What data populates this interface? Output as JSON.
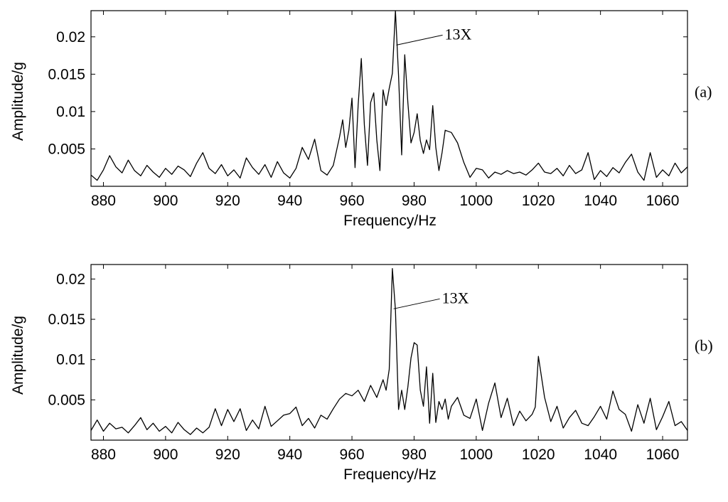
{
  "colors": {
    "line": "#000000",
    "frame": "#000000",
    "background": "#ffffff"
  },
  "chart_data": [
    {
      "type": "line",
      "panel_label": "(a)",
      "xlabel": "Frequency/Hz",
      "ylabel": "Amplitude/g",
      "xlim": [
        876,
        1068
      ],
      "ylim": [
        0,
        0.0235
      ],
      "xticks": [
        880,
        900,
        920,
        940,
        960,
        980,
        1000,
        1020,
        1040,
        1060
      ],
      "yticks": [
        0.005,
        0.01,
        0.015,
        0.02
      ],
      "ytick_labels": [
        "0.005",
        "0.01",
        "0.015",
        "0.02"
      ],
      "grid": false,
      "annotation": {
        "text": "13X",
        "x": 974.3,
        "y": 0.0189
      },
      "series": [
        {
          "x": [
            876,
            878,
            880,
            882,
            884,
            886,
            888,
            890,
            892,
            894,
            896,
            898,
            900,
            902,
            904,
            906,
            908,
            910,
            912,
            914,
            916,
            918,
            920,
            922,
            924,
            926,
            928,
            930,
            932,
            934,
            936,
            938,
            940,
            942,
            944,
            946,
            948,
            950,
            952,
            954,
            956,
            957,
            958,
            959,
            960,
            961,
            962,
            963,
            964,
            965,
            966,
            967,
            968,
            969,
            970,
            971,
            972,
            973,
            974,
            975,
            976,
            977,
            978,
            979,
            980,
            981,
            982,
            983,
            984,
            985,
            986,
            987,
            988,
            989,
            990,
            992,
            994,
            996,
            998,
            1000,
            1002,
            1004,
            1006,
            1008,
            1010,
            1012,
            1014,
            1016,
            1018,
            1020,
            1022,
            1024,
            1026,
            1028,
            1030,
            1032,
            1034,
            1036,
            1038,
            1040,
            1042,
            1044,
            1046,
            1048,
            1050,
            1052,
            1054,
            1056,
            1058,
            1060,
            1062,
            1064,
            1066,
            1068
          ],
          "y": [
            0.0015,
            0.0008,
            0.0022,
            0.0041,
            0.0026,
            0.0018,
            0.0035,
            0.0021,
            0.0014,
            0.0028,
            0.0019,
            0.0012,
            0.0024,
            0.0016,
            0.0027,
            0.0022,
            0.0013,
            0.0031,
            0.0045,
            0.0024,
            0.0017,
            0.0029,
            0.0014,
            0.0022,
            0.0011,
            0.0038,
            0.0025,
            0.0016,
            0.0029,
            0.0012,
            0.0033,
            0.0018,
            0.0011,
            0.0024,
            0.0052,
            0.0036,
            0.0063,
            0.0021,
            0.0015,
            0.0028,
            0.0066,
            0.0089,
            0.0052,
            0.0075,
            0.0118,
            0.0025,
            0.0109,
            0.0171,
            0.0082,
            0.0028,
            0.0112,
            0.0125,
            0.0062,
            0.0021,
            0.0129,
            0.0108,
            0.0131,
            0.0151,
            0.0235,
            0.0148,
            0.0042,
            0.0176,
            0.0112,
            0.0058,
            0.0072,
            0.0097,
            0.0061,
            0.0044,
            0.0062,
            0.0049,
            0.0108,
            0.0052,
            0.0021,
            0.0045,
            0.0075,
            0.0072,
            0.0058,
            0.0032,
            0.0012,
            0.0024,
            0.0022,
            0.0011,
            0.0019,
            0.0016,
            0.0021,
            0.0017,
            0.0019,
            0.0015,
            0.0022,
            0.0031,
            0.0019,
            0.0017,
            0.0024,
            0.0014,
            0.0028,
            0.0017,
            0.0022,
            0.0045,
            0.0009,
            0.0021,
            0.0013,
            0.0025,
            0.0018,
            0.0032,
            0.0043,
            0.0019,
            0.0008,
            0.0045,
            0.0012,
            0.0022,
            0.0014,
            0.0031,
            0.0018,
            0.0026
          ]
        }
      ]
    },
    {
      "type": "line",
      "panel_label": "(b)",
      "xlabel": "Frequency/Hz",
      "ylabel": "Amplitude/g",
      "xlim": [
        876,
        1068
      ],
      "ylim": [
        0,
        0.0218
      ],
      "xticks": [
        880,
        900,
        920,
        940,
        960,
        980,
        1000,
        1020,
        1040,
        1060
      ],
      "yticks": [
        0.005,
        0.01,
        0.015,
        0.02
      ],
      "ytick_labels": [
        "0.005",
        "0.01",
        "0.015",
        "0.02"
      ],
      "grid": false,
      "annotation": {
        "text": "13X",
        "x": 973.4,
        "y": 0.0163
      },
      "series": [
        {
          "x": [
            876,
            878,
            880,
            882,
            884,
            886,
            888,
            890,
            892,
            894,
            896,
            898,
            900,
            902,
            904,
            906,
            908,
            910,
            912,
            914,
            916,
            918,
            920,
            922,
            924,
            926,
            928,
            930,
            932,
            934,
            936,
            938,
            940,
            942,
            944,
            946,
            948,
            950,
            952,
            954,
            956,
            958,
            960,
            962,
            964,
            966,
            968,
            970,
            971,
            972,
            973,
            974,
            975,
            976,
            977,
            978,
            979,
            980,
            981,
            982,
            983,
            984,
            985,
            986,
            987,
            988,
            989,
            990,
            991,
            992,
            994,
            996,
            998,
            1000,
            1002,
            1004,
            1006,
            1008,
            1010,
            1012,
            1014,
            1016,
            1018,
            1019,
            1020,
            1022,
            1024,
            1026,
            1028,
            1030,
            1032,
            1034,
            1036,
            1038,
            1040,
            1042,
            1044,
            1046,
            1048,
            1050,
            1052,
            1054,
            1056,
            1058,
            1060,
            1062,
            1064,
            1066,
            1068
          ],
          "y": [
            0.0012,
            0.0025,
            0.0011,
            0.0021,
            0.0014,
            0.0016,
            0.0009,
            0.0018,
            0.0028,
            0.0013,
            0.0021,
            0.0011,
            0.0017,
            0.0009,
            0.0022,
            0.0013,
            0.0007,
            0.0015,
            0.0009,
            0.0016,
            0.0039,
            0.0018,
            0.0038,
            0.0023,
            0.0039,
            0.0012,
            0.0025,
            0.0014,
            0.0042,
            0.0017,
            0.0024,
            0.0031,
            0.0033,
            0.0041,
            0.0018,
            0.0027,
            0.0015,
            0.0031,
            0.0026,
            0.0039,
            0.0051,
            0.0058,
            0.0055,
            0.0062,
            0.0048,
            0.0068,
            0.0053,
            0.0075,
            0.0062,
            0.0088,
            0.0213,
            0.0162,
            0.0038,
            0.0062,
            0.0038,
            0.0066,
            0.0102,
            0.0121,
            0.0118,
            0.0062,
            0.0042,
            0.0091,
            0.0021,
            0.0083,
            0.0022,
            0.0048,
            0.0038,
            0.0051,
            0.0026,
            0.0042,
            0.0053,
            0.0031,
            0.0027,
            0.0051,
            0.0012,
            0.0046,
            0.0071,
            0.0028,
            0.0052,
            0.0018,
            0.0036,
            0.0024,
            0.0032,
            0.0041,
            0.0104,
            0.0053,
            0.0023,
            0.0042,
            0.0015,
            0.0028,
            0.0037,
            0.0021,
            0.0018,
            0.0029,
            0.0042,
            0.0026,
            0.0061,
            0.0038,
            0.0032,
            0.0011,
            0.0044,
            0.0021,
            0.0052,
            0.0013,
            0.0029,
            0.0048,
            0.0018,
            0.0023,
            0.0012
          ]
        }
      ]
    }
  ]
}
